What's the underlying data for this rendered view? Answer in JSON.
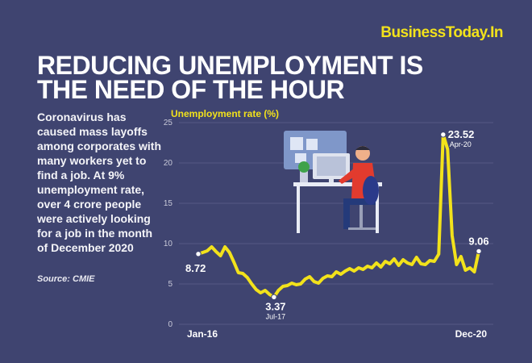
{
  "brand": "BusinessToday.In",
  "title_lines": [
    "REDUCING UNEMPLOYMENT IS",
    "THE NEED OF THE HOUR"
  ],
  "description": "Coronavirus has caused mass layoffs among corporates with many workers yet to find a job. At 9% unemployment rate, over 4 crore people were actively looking for a job in the month of December 2020",
  "source": "Source: CMIE",
  "colors": {
    "background": "#3f4470",
    "accent": "#f2e21b",
    "line": "#f2e21b"
  },
  "illustration": "person-at-desk-illustration",
  "chart_data": {
    "type": "line",
    "title": "",
    "ylabel": "Unemployment rate (%)",
    "xlabel": "",
    "ylim": [
      0,
      25
    ],
    "yticks": [
      0,
      5,
      10,
      15,
      20,
      25
    ],
    "x_tick_labels": [
      "Jan-16",
      "Dec-20"
    ],
    "grid": true,
    "series": [
      {
        "values": [
          8.72,
          8.9,
          9.1,
          9.6,
          9.0,
          8.5,
          9.6,
          8.9,
          7.7,
          6.4,
          6.3,
          5.8,
          5.0,
          4.3,
          3.9,
          4.2,
          3.7,
          3.37,
          4.2,
          4.7,
          4.8,
          5.1,
          4.9,
          5.0,
          5.6,
          5.9,
          5.3,
          5.1,
          5.7,
          6.0,
          5.9,
          6.5,
          6.2,
          6.6,
          6.9,
          6.6,
          7.0,
          6.8,
          7.2,
          7.0,
          7.6,
          7.1,
          7.8,
          7.5,
          8.1,
          7.3,
          8.0,
          7.6,
          7.4,
          8.3,
          7.5,
          7.4,
          7.9,
          7.8,
          8.7,
          23.52,
          21.7,
          11.0,
          7.4,
          8.4,
          6.7,
          7.0,
          6.5,
          9.06
        ]
      }
    ],
    "annotations": [
      {
        "label": "8.72",
        "sub": "",
        "index": 0,
        "value": 8.72
      },
      {
        "label": "3.37",
        "sub": "Jul-17",
        "index": 17,
        "value": 3.37
      },
      {
        "label": "23.52",
        "sub": "Apr-20",
        "index": 55,
        "value": 23.52
      },
      {
        "label": "9.06",
        "sub": "",
        "index": 63,
        "value": 9.06
      }
    ]
  }
}
